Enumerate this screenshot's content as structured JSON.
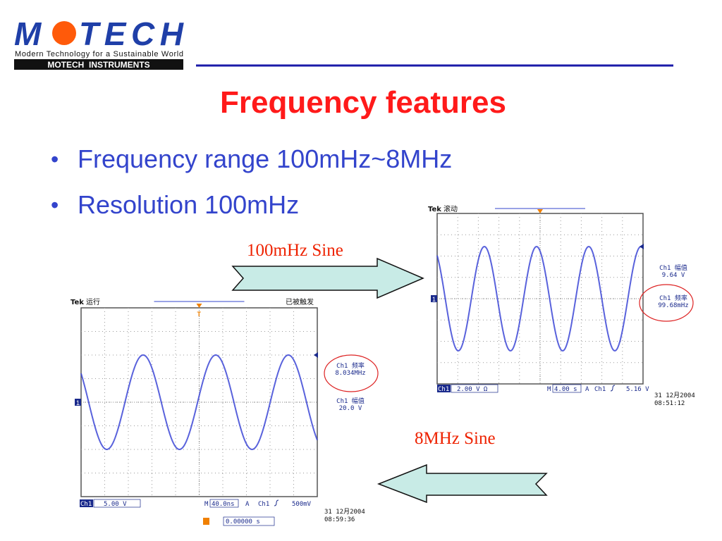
{
  "logo": {
    "left": "M",
    "right": "TECH",
    "tagline": "Modern Technology for a Sustainable World",
    "banner": "MOTECH  INSTRUMENTS"
  },
  "title": "Frequency features",
  "bullets": [
    "Frequency range 100mHz~8MHz",
    "Resolution 100mHz"
  ],
  "labels": {
    "slow": "100mHz Sine",
    "fast": "8MHz Sine"
  },
  "scopes": [
    {
      "brand": "Tek",
      "state": "滚动",
      "channel_marker": "1",
      "readouts": [
        {
          "label": "Ch1 幅值",
          "value": "9.64 V"
        },
        {
          "label": "Ch1 频率",
          "value": "99.68mHz"
        }
      ],
      "bottom": {
        "channel": "Ch1",
        "scale": "2.00 V Ω",
        "time_prefix": "M",
        "time_scale": "4.00 s",
        "trigger_prefix": "A",
        "trigger_channel": "Ch1",
        "trigger_level": "5.16 V"
      },
      "date": "31 12月2004",
      "time": "08:51:12"
    },
    {
      "brand": "Tek",
      "state": "运行",
      "trigger_state": "已被触发",
      "trigger_marker": "T",
      "channel_marker": "1",
      "readouts": [
        {
          "label": "Ch1 频率",
          "value": "8.034MHz"
        },
        {
          "label": "Ch1 幅值",
          "value": "20.0 V"
        }
      ],
      "bottom": {
        "channel": "Ch1",
        "scale": "5.00 V",
        "time_prefix": "M",
        "time_scale": "40.0ns",
        "trigger_prefix": "A",
        "trigger_channel": "Ch1",
        "trigger_level": "500mV"
      },
      "position": "0.00000 s",
      "date": "31 12月2004",
      "time": "08:59:36"
    }
  ]
}
